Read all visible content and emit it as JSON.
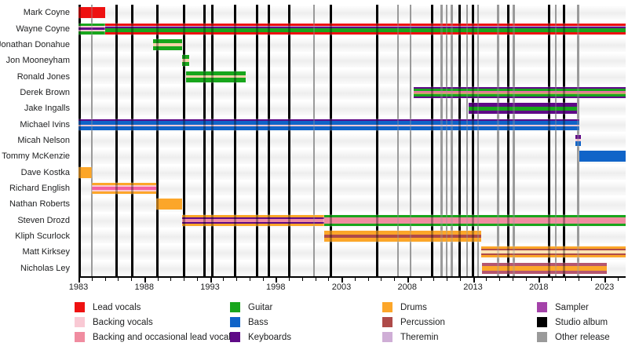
{
  "chart_data": {
    "type": "timeline",
    "description": "Band members timeline with role-striped bars and release lines",
    "axis": {
      "x_start_year": 1983,
      "x_end_year": 2024.6,
      "major_ticks": [
        1983,
        1988,
        1993,
        1998,
        2003,
        2008,
        2013,
        2018,
        2023
      ],
      "minor_tick_interval_years": 1,
      "grid": false
    },
    "palette": {
      "lead_vocals": "#ee1111",
      "backing_vocals": "#f9c9d4",
      "backing_lead_vocals": "#f08ca0",
      "guitar": "#18a61c",
      "bass": "#1064c8",
      "keyboards": "#5f0a87",
      "drums": "#fca629",
      "percussion": "#ae4a49",
      "theremin": "#cfaed6",
      "sampler": "#a442a9",
      "studio_album": "#000000",
      "other_release": "#9a9a9a"
    },
    "legend": [
      {
        "label": "Lead vocals",
        "color": "lead_vocals"
      },
      {
        "label": "Backing vocals",
        "color": "backing_vocals"
      },
      {
        "label": "Backing and occasional lead vocals",
        "color": "backing_lead_vocals"
      },
      {
        "label": "Guitar",
        "color": "guitar"
      },
      {
        "label": "Bass",
        "color": "bass"
      },
      {
        "label": "Keyboards",
        "color": "keyboards"
      },
      {
        "label": "Drums",
        "color": "drums"
      },
      {
        "label": "Percussion",
        "color": "percussion"
      },
      {
        "label": "Theremin",
        "color": "theremin"
      },
      {
        "label": "Sampler",
        "color": "sampler"
      },
      {
        "label": "Studio album",
        "color": "studio_album"
      },
      {
        "label": "Other release",
        "color": "other_release"
      }
    ],
    "members": [
      {
        "name": "Mark Coyne",
        "segments": [
          {
            "start": 1983.0,
            "end": 1985.0,
            "roles": [
              "Lead vocals"
            ],
            "stripes": [
              [
                "lead_vocals",
                1
              ]
            ]
          }
        ]
      },
      {
        "name": "Wayne Coyne",
        "segments": [
          {
            "start": 1983.0,
            "end": 1985.0,
            "roles": [
              "Guitar",
              "Backing vocals",
              "Keyboards"
            ],
            "stripes": [
              [
                "guitar",
                3
              ],
              [
                "backing_vocals",
                2
              ],
              [
                "keyboards",
                2
              ],
              [
                "backing_vocals",
                2
              ],
              [
                "guitar",
                3
              ]
            ]
          },
          {
            "start": 1985.0,
            "end": 2025.0,
            "roles": [
              "Lead vocals",
              "Theremin",
              "Keyboards",
              "Guitar"
            ],
            "stripes": [
              [
                "lead_vocals",
                3
              ],
              [
                "theremin",
                1
              ],
              [
                "keyboards",
                2
              ],
              [
                "guitar",
                5
              ],
              [
                "lead_vocals",
                3
              ]
            ]
          }
        ]
      },
      {
        "name": "Jonathan Donahue",
        "segments": [
          {
            "start": 1988.7,
            "end": 1990.9,
            "roles": [
              "Guitar",
              "Backing vocals"
            ],
            "stripes": [
              [
                "guitar",
                4
              ],
              [
                "#f6d2a9",
                3
              ],
              [
                "guitar",
                4
              ]
            ]
          }
        ]
      },
      {
        "name": "Jon Mooneyham",
        "segments": [
          {
            "start": 1990.9,
            "end": 1991.4,
            "roles": [
              "Guitar",
              "Backing vocals"
            ],
            "stripes": [
              [
                "guitar",
                4
              ],
              [
                "#f6d2a9",
                3
              ],
              [
                "guitar",
                4
              ]
            ]
          }
        ]
      },
      {
        "name": "Ronald Jones",
        "segments": [
          {
            "start": 1991.2,
            "end": 1995.7,
            "roles": [
              "Guitar",
              "Backing vocals"
            ],
            "stripes": [
              [
                "guitar",
                4
              ],
              [
                "#f6d2a9",
                3
              ],
              [
                "guitar",
                4
              ]
            ]
          }
        ]
      },
      {
        "name": "Derek Brown",
        "segments": [
          {
            "start": 2008.5,
            "end": 2025.0,
            "roles": [
              "Keyboards",
              "Guitar",
              "Backing vocals",
              "Percussion"
            ],
            "stripes": [
              [
                "keyboards",
                2
              ],
              [
                "guitar",
                3
              ],
              [
                "#ee6fa9",
                3
              ],
              [
                "#c2a964",
                2
              ],
              [
                "guitar",
                3
              ],
              [
                "keyboards",
                2
              ]
            ]
          }
        ]
      },
      {
        "name": "Jake Ingalls",
        "segments": [
          {
            "start": 2012.7,
            "end": 2020.9,
            "roles": [
              "Keyboards",
              "Guitar",
              "Sampler"
            ],
            "stripes": [
              [
                "keyboards",
                4
              ],
              [
                "guitar",
                4
              ],
              [
                "keyboards",
                4
              ]
            ]
          }
        ]
      },
      {
        "name": "Michael Ivins",
        "segments": [
          {
            "start": 1983.0,
            "end": 2021.1,
            "roles": [
              "Bass",
              "Keyboards",
              "Backing vocals"
            ],
            "stripes": [
              [
                "keyboards",
                2
              ],
              [
                "bass",
                5
              ],
              [
                "backing_vocals",
                2
              ],
              [
                "bass",
                4
              ]
            ]
          }
        ]
      },
      {
        "name": "Micah Nelson",
        "segments": [
          {
            "start": 2020.8,
            "end": 2021.2,
            "roles": [
              "Bass",
              "Backing vocals",
              "Keyboards"
            ],
            "stripes": [
              [
                "keyboards",
                4
              ],
              [
                "backing_vocals",
                3
              ],
              [
                "bass",
                5
              ]
            ]
          }
        ]
      },
      {
        "name": "Tommy McKenzie",
        "segments": [
          {
            "start": 2021.1,
            "end": 2025.0,
            "roles": [
              "Bass"
            ],
            "stripes": [
              [
                "bass",
                1
              ]
            ]
          }
        ]
      },
      {
        "name": "Dave Kostka",
        "segments": [
          {
            "start": 1983.0,
            "end": 1984.0,
            "roles": [
              "Drums"
            ],
            "stripes": [
              [
                "drums",
                1
              ]
            ]
          }
        ]
      },
      {
        "name": "Richard English",
        "segments": [
          {
            "start": 1984.0,
            "end": 1988.9,
            "roles": [
              "Drums",
              "Backing and occasional lead vocals"
            ],
            "stripes": [
              [
                "drums",
                3
              ],
              [
                "backing_vocals",
                2
              ],
              [
                "#f55fa0",
                3
              ],
              [
                "backing_vocals",
                2
              ],
              [
                "drums",
                3
              ]
            ]
          }
        ]
      },
      {
        "name": "Nathan Roberts",
        "segments": [
          {
            "start": 1988.9,
            "end": 1990.9,
            "roles": [
              "Drums"
            ],
            "stripes": [
              [
                "drums",
                1
              ]
            ]
          }
        ]
      },
      {
        "name": "Steven Drozd",
        "segments": [
          {
            "start": 1990.9,
            "end": 2001.7,
            "roles": [
              "Drums",
              "Keyboards",
              "Backing and occasional lead vocals"
            ],
            "stripes": [
              [
                "drums",
                3
              ],
              [
                "keyboards",
                2
              ],
              [
                "backing_lead_vocals",
                4
              ],
              [
                "keyboards",
                2
              ],
              [
                "drums",
                3
              ]
            ]
          },
          {
            "start": 2001.7,
            "end": 2025.0,
            "roles": [
              "Guitar",
              "Backing and occasional lead vocals"
            ],
            "stripes": [
              [
                "guitar",
                3
              ],
              [
                "backing_lead_vocals",
                7
              ],
              [
                "guitar",
                3
              ]
            ]
          }
        ]
      },
      {
        "name": "Kliph Scurlock",
        "segments": [
          {
            "start": 2001.7,
            "end": 2013.6,
            "roles": [
              "Drums",
              "Percussion"
            ],
            "stripes": [
              [
                "drums",
                4
              ],
              [
                "percussion",
                3.5
              ],
              [
                "drums",
                4
              ]
            ]
          }
        ]
      },
      {
        "name": "Matt Kirksey",
        "segments": [
          {
            "start": 2013.6,
            "end": 2025.0,
            "roles": [
              "Drums",
              "Percussion"
            ],
            "stripes": [
              [
                "drums",
                3
              ],
              [
                "percussion",
                2
              ],
              [
                "#fbe3b3",
                4
              ],
              [
                "percussion",
                2
              ],
              [
                "drums",
                3
              ]
            ]
          }
        ]
      },
      {
        "name": "Nicholas Ley",
        "segments": [
          {
            "start": 2013.7,
            "end": 2023.2,
            "roles": [
              "Percussion",
              "Drums"
            ],
            "stripes": [
              [
                "#b5566f",
                4
              ],
              [
                "drums",
                5
              ],
              [
                "#b5566f",
                4
              ]
            ]
          }
        ]
      }
    ],
    "releases": {
      "studio_album_years": [
        1983.1,
        1985.9,
        1987.1,
        1989.0,
        1991.0,
        1992.6,
        1993.2,
        1994.9,
        1996.6,
        1997.5,
        1999.0,
        2002.2,
        2005.7,
        2009.9,
        2012.0,
        2013.0,
        2015.7,
        2018.8,
        2019.9
      ],
      "other_release_years": [
        1984.0,
        2000.9,
        2007.3,
        2008.25,
        2010.6,
        2011.0,
        2011.4,
        2012.55,
        2013.4,
        2014.9,
        2016.1,
        2019.3,
        2021.0
      ]
    }
  }
}
